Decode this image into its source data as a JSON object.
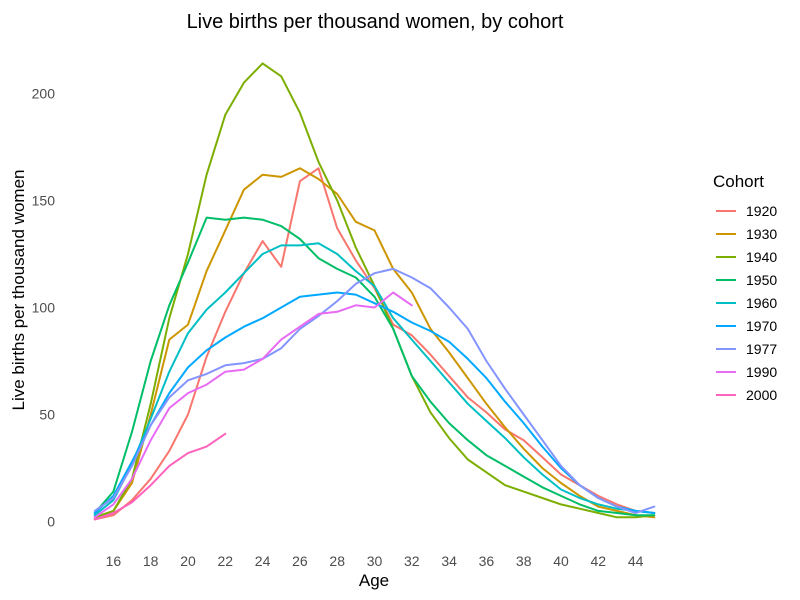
{
  "chart_data": {
    "type": "line",
    "title": "Live births per thousand women, by cohort",
    "xlabel": "Age",
    "ylabel": "Live births per thousand women",
    "xlim": [
      14.8,
      45.2
    ],
    "ylim": [
      -3,
      224
    ],
    "x_ticks": [
      16,
      18,
      20,
      22,
      24,
      26,
      28,
      30,
      32,
      34,
      36,
      38,
      40,
      42,
      44
    ],
    "y_ticks": [
      0,
      50,
      100,
      150,
      200
    ],
    "legend": {
      "title": "Cohort",
      "position": "right"
    },
    "grid": false,
    "series": [
      {
        "name": "1920",
        "color": "#F8766D",
        "x": [
          15,
          16,
          17,
          18,
          19,
          20,
          21,
          22,
          23,
          24,
          25,
          26,
          27,
          28,
          29,
          30,
          31,
          32,
          33,
          34,
          35,
          36,
          37,
          38,
          39,
          40,
          41,
          42,
          43,
          44,
          45
        ],
        "y": [
          1,
          3,
          10,
          20,
          33,
          50,
          77,
          98,
          116,
          131,
          119,
          159,
          165,
          137,
          122,
          109,
          92,
          87,
          78,
          68,
          58,
          51,
          43,
          38,
          30,
          22,
          17,
          12,
          8,
          5,
          4
        ]
      },
      {
        "name": "1930",
        "color": "#CD9600",
        "x": [
          15,
          16,
          17,
          18,
          19,
          20,
          21,
          22,
          23,
          24,
          25,
          26,
          27,
          28,
          29,
          30,
          31,
          32,
          33,
          34,
          35,
          36,
          37,
          38,
          39,
          40,
          41,
          42,
          43,
          44,
          45
        ],
        "y": [
          2,
          5,
          18,
          50,
          85,
          92,
          117,
          136,
          155,
          162,
          161,
          165,
          160,
          153,
          140,
          136,
          118,
          107,
          90,
          79,
          67,
          55,
          44,
          34,
          25,
          18,
          12,
          7,
          5,
          3,
          2
        ]
      },
      {
        "name": "1940",
        "color": "#7CAE00",
        "x": [
          15,
          16,
          17,
          18,
          19,
          20,
          21,
          22,
          23,
          24,
          25,
          26,
          27,
          28,
          29,
          30,
          31,
          32,
          33,
          34,
          35,
          36,
          37,
          38,
          39,
          40,
          41,
          42,
          43,
          44,
          45
        ],
        "y": [
          2,
          5,
          20,
          55,
          95,
          125,
          162,
          190,
          205,
          214,
          208,
          191,
          168,
          150,
          128,
          110,
          90,
          68,
          51,
          39,
          29,
          23,
          17,
          14,
          11,
          8,
          6,
          4,
          2,
          2,
          3
        ]
      },
      {
        "name": "1950",
        "color": "#00BE67",
        "x": [
          15,
          16,
          17,
          18,
          19,
          20,
          21,
          22,
          23,
          24,
          25,
          26,
          27,
          28,
          29,
          30,
          31,
          32,
          33,
          34,
          35,
          36,
          37,
          38,
          39,
          40,
          41,
          42,
          43,
          44,
          45
        ],
        "y": [
          4,
          14,
          42,
          75,
          101,
          121,
          142,
          141,
          142,
          141,
          138,
          132,
          123,
          118,
          114,
          105,
          90,
          68,
          56,
          46,
          38,
          31,
          26,
          21,
          16,
          12,
          8,
          5,
          4,
          3,
          3
        ]
      },
      {
        "name": "1960",
        "color": "#00BFC4",
        "x": [
          15,
          16,
          17,
          18,
          19,
          20,
          21,
          22,
          23,
          24,
          25,
          26,
          27,
          28,
          29,
          30,
          31,
          32,
          33,
          34,
          35,
          36,
          37,
          38,
          39,
          40,
          41,
          42,
          43,
          44,
          45
        ],
        "y": [
          3,
          10,
          27,
          48,
          70,
          88,
          99,
          107,
          116,
          125,
          129,
          129,
          130,
          125,
          117,
          110,
          95,
          85,
          75,
          65,
          55,
          47,
          39,
          30,
          22,
          15,
          11,
          8,
          6,
          5,
          4
        ]
      },
      {
        "name": "1970",
        "color": "#00A9FF",
        "x": [
          15,
          16,
          17,
          18,
          19,
          20,
          21,
          22,
          23,
          24,
          25,
          26,
          27,
          28,
          29,
          30,
          31,
          32,
          33,
          34,
          35,
          36,
          37,
          38,
          39,
          40,
          41,
          42,
          43,
          44,
          45
        ],
        "y": [
          4,
          12,
          28,
          45,
          60,
          72,
          80,
          86,
          91,
          95,
          100,
          105,
          106,
          107,
          106,
          102,
          98,
          93,
          89,
          84,
          76,
          67,
          56,
          46,
          35,
          25,
          17,
          11,
          7,
          5,
          4
        ]
      },
      {
        "name": "1977",
        "color": "#8494FF",
        "x": [
          15,
          16,
          17,
          18,
          19,
          20,
          21,
          22,
          23,
          24,
          25,
          26,
          27,
          28,
          29,
          30,
          31,
          32,
          33,
          34,
          35,
          36,
          37,
          38,
          39,
          40,
          41,
          42,
          43,
          44,
          45
        ],
        "y": [
          5,
          11,
          26,
          45,
          58,
          66,
          69,
          73,
          74,
          76,
          81,
          90,
          96,
          103,
          111,
          116,
          118,
          114,
          109,
          100,
          90,
          75,
          62,
          50,
          38,
          26,
          17,
          11,
          7,
          4,
          7
        ]
      },
      {
        "name": "1990",
        "color": "#E76BF3",
        "x": [
          15,
          16,
          17,
          18,
          19,
          20,
          21,
          22,
          23,
          24,
          25,
          26,
          27,
          28,
          29,
          30,
          31,
          32
        ],
        "y": [
          2,
          8,
          20,
          38,
          53,
          60,
          64,
          70,
          71,
          76,
          85,
          91,
          97,
          98,
          101,
          100,
          107,
          101
        ]
      },
      {
        "name": "2000",
        "color": "#FF62BC",
        "x": [
          15,
          16,
          17,
          18,
          19,
          20,
          21,
          22
        ],
        "y": [
          1,
          4,
          9,
          17,
          26,
          32,
          35,
          41
        ]
      }
    ]
  }
}
